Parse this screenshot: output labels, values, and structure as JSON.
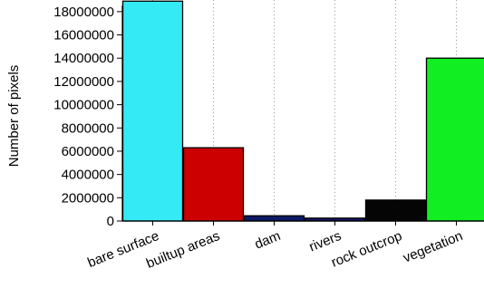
{
  "chart_data": {
    "type": "bar",
    "title": "",
    "xlabel": "",
    "ylabel": "Number of pixels",
    "ylim": [
      0,
      19000000
    ],
    "yticks": [
      0,
      2000000,
      4000000,
      6000000,
      8000000,
      10000000,
      12000000,
      14000000,
      16000000,
      18000000
    ],
    "ytick_labels": [
      "0",
      "2000000",
      "4000000",
      "6000000",
      "8000000",
      "10000000",
      "12000000",
      "14000000",
      "16000000",
      "18000000"
    ],
    "categories": [
      "bare surface",
      "builtup areas",
      "dam",
      "rivers",
      "rock outcrop",
      "vegetation"
    ],
    "values": [
      18900000,
      6300000,
      450000,
      250000,
      1800000,
      14000000
    ],
    "colors": [
      "#33eaf5",
      "#cc0000",
      "#0a1a66",
      "#141466",
      "#050505",
      "#11ee22"
    ],
    "grid": true,
    "grid_style": "dotted vertical"
  }
}
